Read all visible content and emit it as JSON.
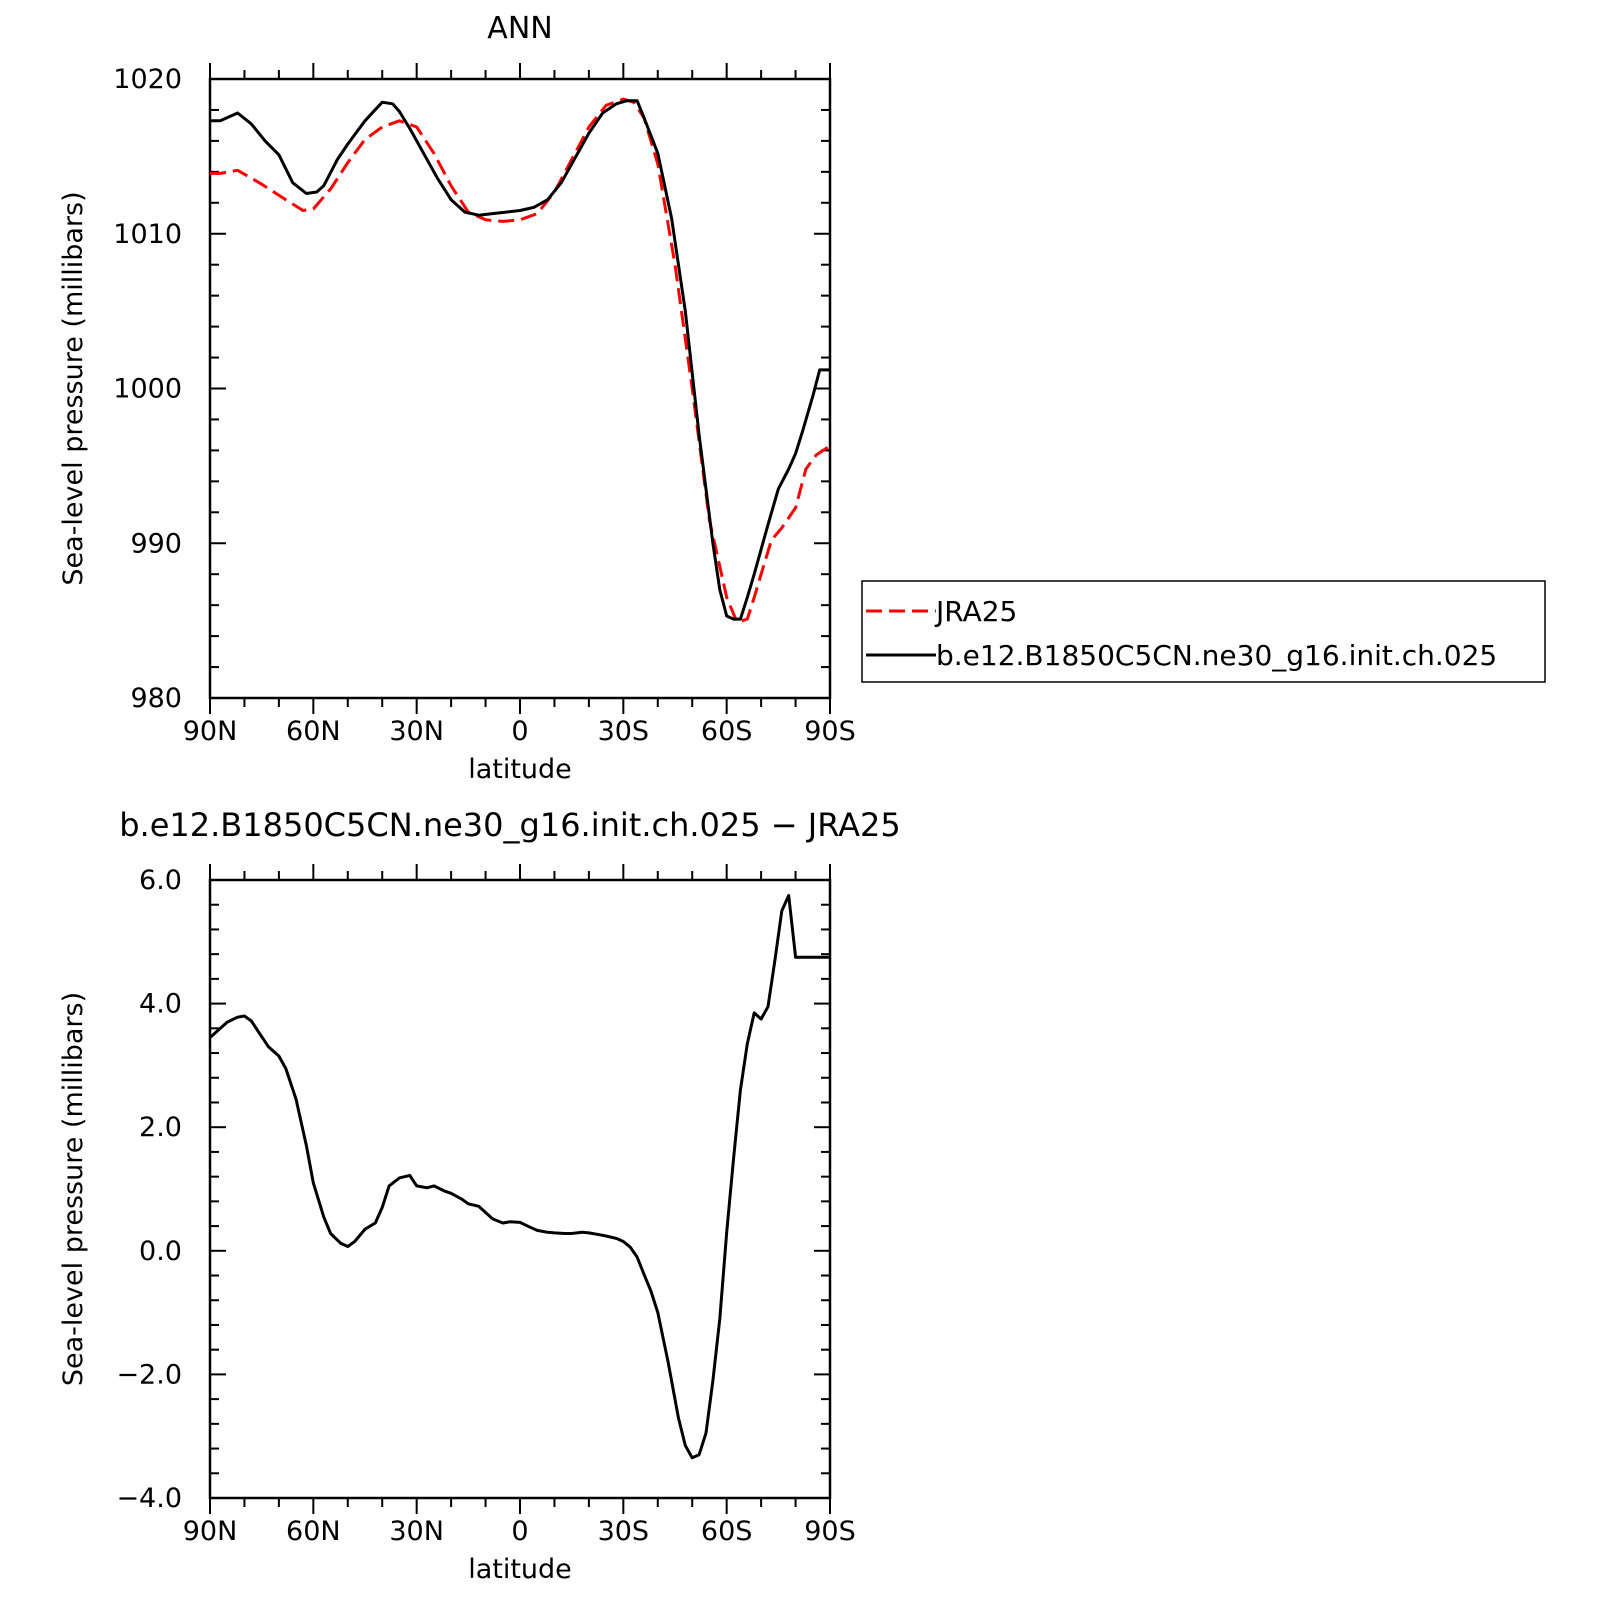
{
  "chart_data": [
    {
      "type": "line",
      "title": "ANN",
      "xlabel": "latitude",
      "ylabel": "Sea-level pressure (millibars)",
      "xlim": [
        90,
        -90
      ],
      "ylim": [
        980,
        1020
      ],
      "x_ticks": [
        90,
        60,
        30,
        0,
        -30,
        -60,
        -90
      ],
      "x_tick_labels": [
        "90N",
        "60N",
        "30N",
        "0",
        "30S",
        "60S",
        "90S"
      ],
      "y_ticks": [
        980,
        990,
        1000,
        1010,
        1020
      ],
      "y_tick_labels": [
        "980",
        "990",
        "1000",
        "1010",
        "1020"
      ],
      "legend_position": "right",
      "series": [
        {
          "name": "JRA25",
          "color": "#ff0000",
          "dash": "dashed",
          "x": [
            90,
            87,
            82,
            75,
            68,
            63,
            60,
            55,
            50,
            45,
            40,
            35,
            30,
            25,
            20,
            15,
            10,
            5,
            0,
            -5,
            -10,
            -15,
            -20,
            -25,
            -30,
            -33,
            -36,
            -40,
            -45,
            -50,
            -55,
            -60,
            -63,
            -66,
            -68,
            -70,
            -73,
            -76,
            -80,
            -83,
            -86,
            -90
          ],
          "values": [
            1013.9,
            1013.9,
            1014.1,
            1013.2,
            1012.2,
            1011.5,
            1011.6,
            1012.9,
            1014.6,
            1016.1,
            1016.9,
            1017.3,
            1016.9,
            1015.2,
            1013.1,
            1011.4,
            1010.9,
            1010.8,
            1010.9,
            1011.3,
            1012.7,
            1014.8,
            1016.9,
            1018.3,
            1018.7,
            1018.5,
            1017.5,
            1014.5,
            1008.0,
            1000.0,
            991.5,
            986.5,
            984.9,
            985.1,
            986.5,
            988.0,
            990.2,
            991.0,
            992.3,
            994.8,
            995.7,
            996.3
          ]
        },
        {
          "name": "b.e12.B1850C5CN.ne30_g16.init.ch.025",
          "color": "#000000",
          "dash": "solid",
          "x": [
            90,
            87,
            82,
            78,
            74,
            70,
            66,
            62,
            59,
            57,
            53,
            50,
            45,
            40,
            37,
            35,
            32,
            28,
            24,
            20,
            16,
            12,
            8,
            4,
            0,
            -4,
            -8,
            -12,
            -16,
            -20,
            -24,
            -28,
            -31,
            -34,
            -36,
            -40,
            -44,
            -48,
            -52,
            -56,
            -58,
            -60,
            -62,
            -64,
            -66,
            -68,
            -72,
            -75,
            -78,
            -80,
            -82,
            -85,
            -87,
            -89,
            -90
          ],
          "values": [
            1017.3,
            1017.3,
            1017.8,
            1017.1,
            1016.0,
            1015.1,
            1013.3,
            1012.6,
            1012.7,
            1013.1,
            1014.8,
            1015.8,
            1017.3,
            1018.5,
            1018.4,
            1017.9,
            1016.8,
            1015.2,
            1013.6,
            1012.2,
            1011.4,
            1011.2,
            1011.3,
            1011.4,
            1011.5,
            1011.7,
            1012.2,
            1013.3,
            1014.9,
            1016.5,
            1017.8,
            1018.4,
            1018.6,
            1018.6,
            1017.5,
            1015.2,
            1011.0,
            1005.0,
            997.0,
            990.0,
            987.0,
            985.3,
            985.1,
            985.1,
            986.5,
            988.0,
            991.2,
            993.5,
            994.8,
            995.8,
            997.2,
            999.5,
            1001.2,
            1001.2,
            1001.2
          ]
        }
      ]
    },
    {
      "type": "line",
      "title": "b.e12.B1850C5CN.ne30_g16.init.ch.025 - JRA25",
      "xlabel": "latitude",
      "ylabel": "Sea-level pressure (millibars)",
      "xlim": [
        90,
        -90
      ],
      "ylim": [
        -4.0,
        6.0
      ],
      "x_ticks": [
        90,
        60,
        30,
        0,
        -30,
        -60,
        -90
      ],
      "x_tick_labels": [
        "90N",
        "60N",
        "30N",
        "0",
        "30S",
        "60S",
        "90S"
      ],
      "y_ticks": [
        -4,
        -2,
        0,
        2,
        4,
        6
      ],
      "y_tick_labels": [
        "-4.0",
        "-2.0",
        "0.0",
        "2.0",
        "4.0",
        "6.0"
      ],
      "series": [
        {
          "color": "#000000",
          "dash": "solid",
          "x": [
            90,
            88,
            85,
            82,
            80,
            78,
            76,
            73,
            70,
            68,
            65,
            62,
            60,
            57,
            55,
            52,
            50,
            48,
            45,
            42,
            40,
            38,
            35,
            32,
            30,
            27,
            25,
            22,
            20,
            17,
            15,
            12,
            10,
            8,
            5,
            3,
            0,
            -3,
            -5,
            -8,
            -10,
            -13,
            -15,
            -18,
            -20,
            -23,
            -25,
            -28,
            -30,
            -32,
            -34,
            -36,
            -38,
            -40,
            -43,
            -46,
            -48,
            -50,
            -52,
            -54,
            -56,
            -58,
            -60,
            -62,
            -64,
            -66,
            -68,
            -70,
            -72,
            -74,
            -76,
            -78,
            -80,
            -82,
            -84,
            -86,
            -88,
            -90
          ],
          "values": [
            3.45,
            3.55,
            3.7,
            3.78,
            3.8,
            3.72,
            3.55,
            3.3,
            3.15,
            2.95,
            2.45,
            1.7,
            1.1,
            0.55,
            0.28,
            0.12,
            0.07,
            0.15,
            0.35,
            0.45,
            0.7,
            1.05,
            1.18,
            1.22,
            1.05,
            1.02,
            1.05,
            0.97,
            0.93,
            0.84,
            0.76,
            0.72,
            0.62,
            0.52,
            0.45,
            0.47,
            0.46,
            0.38,
            0.33,
            0.3,
            0.29,
            0.28,
            0.28,
            0.3,
            0.29,
            0.26,
            0.24,
            0.2,
            0.15,
            0.06,
            -0.1,
            -0.38,
            -0.65,
            -1.0,
            -1.8,
            -2.7,
            -3.15,
            -3.35,
            -3.3,
            -2.95,
            -2.1,
            -1.1,
            0.3,
            1.5,
            2.6,
            3.35,
            3.85,
            3.75,
            3.95,
            4.7,
            5.5,
            5.75,
            4.75,
            4.75,
            4.75,
            4.75,
            4.75,
            4.75
          ]
        }
      ]
    }
  ]
}
